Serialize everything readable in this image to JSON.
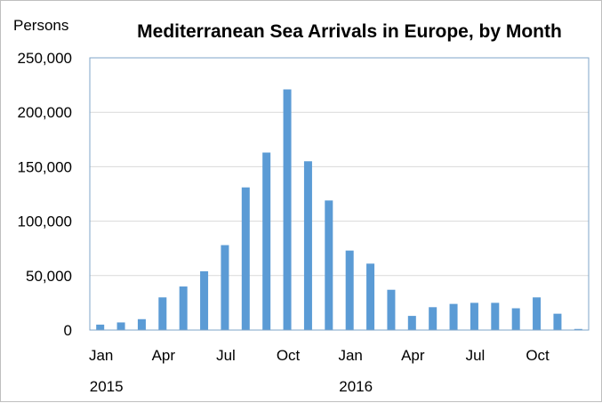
{
  "chart_data": {
    "type": "bar",
    "title": "Mediterranean Sea Arrivals in Europe, by Month",
    "ylabel": "Persons",
    "xlabel": "",
    "ylim": [
      0,
      250000
    ],
    "yticks": [
      0,
      50000,
      100000,
      150000,
      200000,
      250000
    ],
    "ytick_labels": [
      "0",
      "50,000",
      "100,000",
      "150,000",
      "200,000",
      "250,000"
    ],
    "grid": true,
    "legend": "none",
    "bar_color": "#5b9bd5",
    "categories": [
      "Jan 2015",
      "Feb 2015",
      "Mar 2015",
      "Apr 2015",
      "May 2015",
      "Jun 2015",
      "Jul 2015",
      "Aug 2015",
      "Sep 2015",
      "Oct 2015",
      "Nov 2015",
      "Dec 2015",
      "Jan 2016",
      "Feb 2016",
      "Mar 2016",
      "Apr 2016",
      "May 2016",
      "Jun 2016",
      "Jul 2016",
      "Aug 2016",
      "Sep 2016",
      "Oct 2016",
      "Nov 2016",
      "Dec 2016"
    ],
    "values": [
      5000,
      7000,
      10000,
      30000,
      40000,
      54000,
      78000,
      131000,
      163000,
      221000,
      155000,
      119000,
      73000,
      61000,
      37000,
      13000,
      21000,
      24000,
      25000,
      25000,
      20000,
      30000,
      15000,
      1000
    ],
    "x_tick_labels": [
      {
        "index": 0,
        "label": "Jan"
      },
      {
        "index": 3,
        "label": "Apr"
      },
      {
        "index": 6,
        "label": "Jul"
      },
      {
        "index": 9,
        "label": "Oct"
      },
      {
        "index": 12,
        "label": "Jan"
      },
      {
        "index": 15,
        "label": "Apr"
      },
      {
        "index": 18,
        "label": "Jul"
      },
      {
        "index": 21,
        "label": "Oct"
      }
    ],
    "year_labels": [
      {
        "index": 0,
        "label": "2015"
      },
      {
        "index": 12,
        "label": "2016"
      }
    ]
  }
}
